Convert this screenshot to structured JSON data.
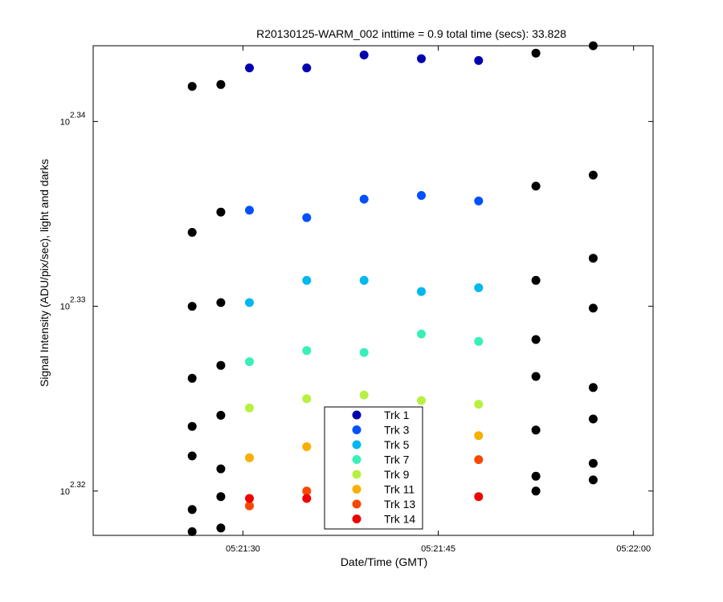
{
  "chart_data": {
    "type": "scatter",
    "title": "R20130125-WARM_002 inttime = 0.9 total time (secs): 33.828",
    "xlabel": "Date/Time (GMT)",
    "ylabel": "Signal Intensity (ADU/pix/sec), light and darks",
    "x_ticks": [
      "05:21:30",
      "05:21:45",
      "05:22:00"
    ],
    "y_ticks": [
      {
        "base": "10",
        "exp": "2.32"
      },
      {
        "base": "10",
        "exp": "2.33"
      },
      {
        "base": "10",
        "exp": "2.34"
      }
    ],
    "y_scale": "log10",
    "xlim_seconds_since_05_21_00": [
      18.5,
      61.5
    ],
    "ylim_log10": [
      2.3176,
      2.3441
    ],
    "series": [
      {
        "name": "Trk 1",
        "color": "#0000b0",
        "points": [
          [
            "05:21:30.5",
            2.3429
          ],
          [
            "05:21:34.9",
            2.3429
          ],
          [
            "05:21:39.3",
            2.3436
          ],
          [
            "05:21:43.7",
            2.3434
          ],
          [
            "05:21:48.1",
            2.3433
          ]
        ]
      },
      {
        "name": "Trk 3",
        "color": "#0050ff",
        "points": [
          [
            "05:21:30.5",
            2.3352
          ],
          [
            "05:21:34.9",
            2.3348
          ],
          [
            "05:21:39.3",
            2.3358
          ],
          [
            "05:21:43.7",
            2.336
          ],
          [
            "05:21:48.1",
            2.3357
          ]
        ]
      },
      {
        "name": "Trk 5",
        "color": "#00b8f0",
        "points": [
          [
            "05:21:30.5",
            2.3302
          ],
          [
            "05:21:34.9",
            2.3314
          ],
          [
            "05:21:39.3",
            2.3314
          ],
          [
            "05:21:43.7",
            2.3308
          ],
          [
            "05:21:48.1",
            2.331
          ]
        ]
      },
      {
        "name": "Trk 7",
        "color": "#38f0b8",
        "points": [
          [
            "05:21:30.5",
            2.327
          ],
          [
            "05:21:34.9",
            2.3276
          ],
          [
            "05:21:39.3",
            2.3275
          ],
          [
            "05:21:43.7",
            2.3285
          ],
          [
            "05:21:48.1",
            2.3281
          ]
        ]
      },
      {
        "name": "Trk 9",
        "color": "#b8f040",
        "points": [
          [
            "05:21:30.5",
            2.3245
          ],
          [
            "05:21:34.9",
            2.325
          ],
          [
            "05:21:39.3",
            2.3252
          ],
          [
            "05:21:43.7",
            2.3249
          ],
          [
            "05:21:48.1",
            2.3247
          ]
        ]
      },
      {
        "name": "Trk 11",
        "color": "#f8b000",
        "points": [
          [
            "05:21:30.5",
            2.3218
          ],
          [
            "05:21:34.9",
            2.3224
          ],
          [
            "05:21:48.1",
            2.323
          ]
        ]
      },
      {
        "name": "Trk 13",
        "color": "#f84800",
        "points": [
          [
            "05:21:30.5",
            2.3192
          ],
          [
            "05:21:34.9",
            2.32
          ],
          [
            "05:21:48.1",
            2.3217
          ]
        ]
      },
      {
        "name": "Trk 14",
        "color": "#f00000",
        "points": [
          [
            "05:21:30.5",
            2.3196
          ],
          [
            "05:21:34.9",
            2.3196
          ],
          [
            "05:21:48.1",
            2.3197
          ]
        ]
      },
      {
        "name": "",
        "color": "#000000",
        "points": [
          [
            "05:21:26.1",
            2.3419
          ],
          [
            "05:21:26.1",
            2.334
          ],
          [
            "05:21:26.1",
            2.33
          ],
          [
            "05:21:26.1",
            2.3261
          ],
          [
            "05:21:26.1",
            2.3235
          ],
          [
            "05:21:26.1",
            2.3219
          ],
          [
            "05:21:26.1",
            2.319
          ],
          [
            "05:21:26.1",
            2.3178
          ],
          [
            "05:21:28.3",
            2.342
          ],
          [
            "05:21:28.3",
            2.3351
          ],
          [
            "05:21:28.3",
            2.3302
          ],
          [
            "05:21:28.3",
            2.3268
          ],
          [
            "05:21:28.3",
            2.3241
          ],
          [
            "05:21:28.3",
            2.3212
          ],
          [
            "05:21:28.3",
            2.3197
          ],
          [
            "05:21:28.3",
            2.318
          ],
          [
            "05:21:52.5",
            2.3437
          ],
          [
            "05:21:52.5",
            2.3365
          ],
          [
            "05:21:52.5",
            2.3314
          ],
          [
            "05:21:52.5",
            2.3282
          ],
          [
            "05:21:52.5",
            2.3262
          ],
          [
            "05:21:52.5",
            2.3233
          ],
          [
            "05:21:52.5",
            2.3208
          ],
          [
            "05:21:52.5",
            2.32
          ],
          [
            "05:21:56.9",
            2.3441
          ],
          [
            "05:21:56.9",
            2.3371
          ],
          [
            "05:21:56.9",
            2.3326
          ],
          [
            "05:21:56.9",
            2.3299
          ],
          [
            "05:21:56.9",
            2.3256
          ],
          [
            "05:21:56.9",
            2.3239
          ],
          [
            "05:21:56.9",
            2.3215
          ],
          [
            "05:21:56.9",
            2.3206
          ]
        ]
      }
    ],
    "legend": {
      "placement": "bottom-center",
      "entries": [
        "Trk 1",
        "Trk 3",
        "Trk 5",
        "Trk 7",
        "Trk 9",
        "Trk 11",
        "Trk 13",
        "Trk 14"
      ]
    },
    "grid": false
  }
}
